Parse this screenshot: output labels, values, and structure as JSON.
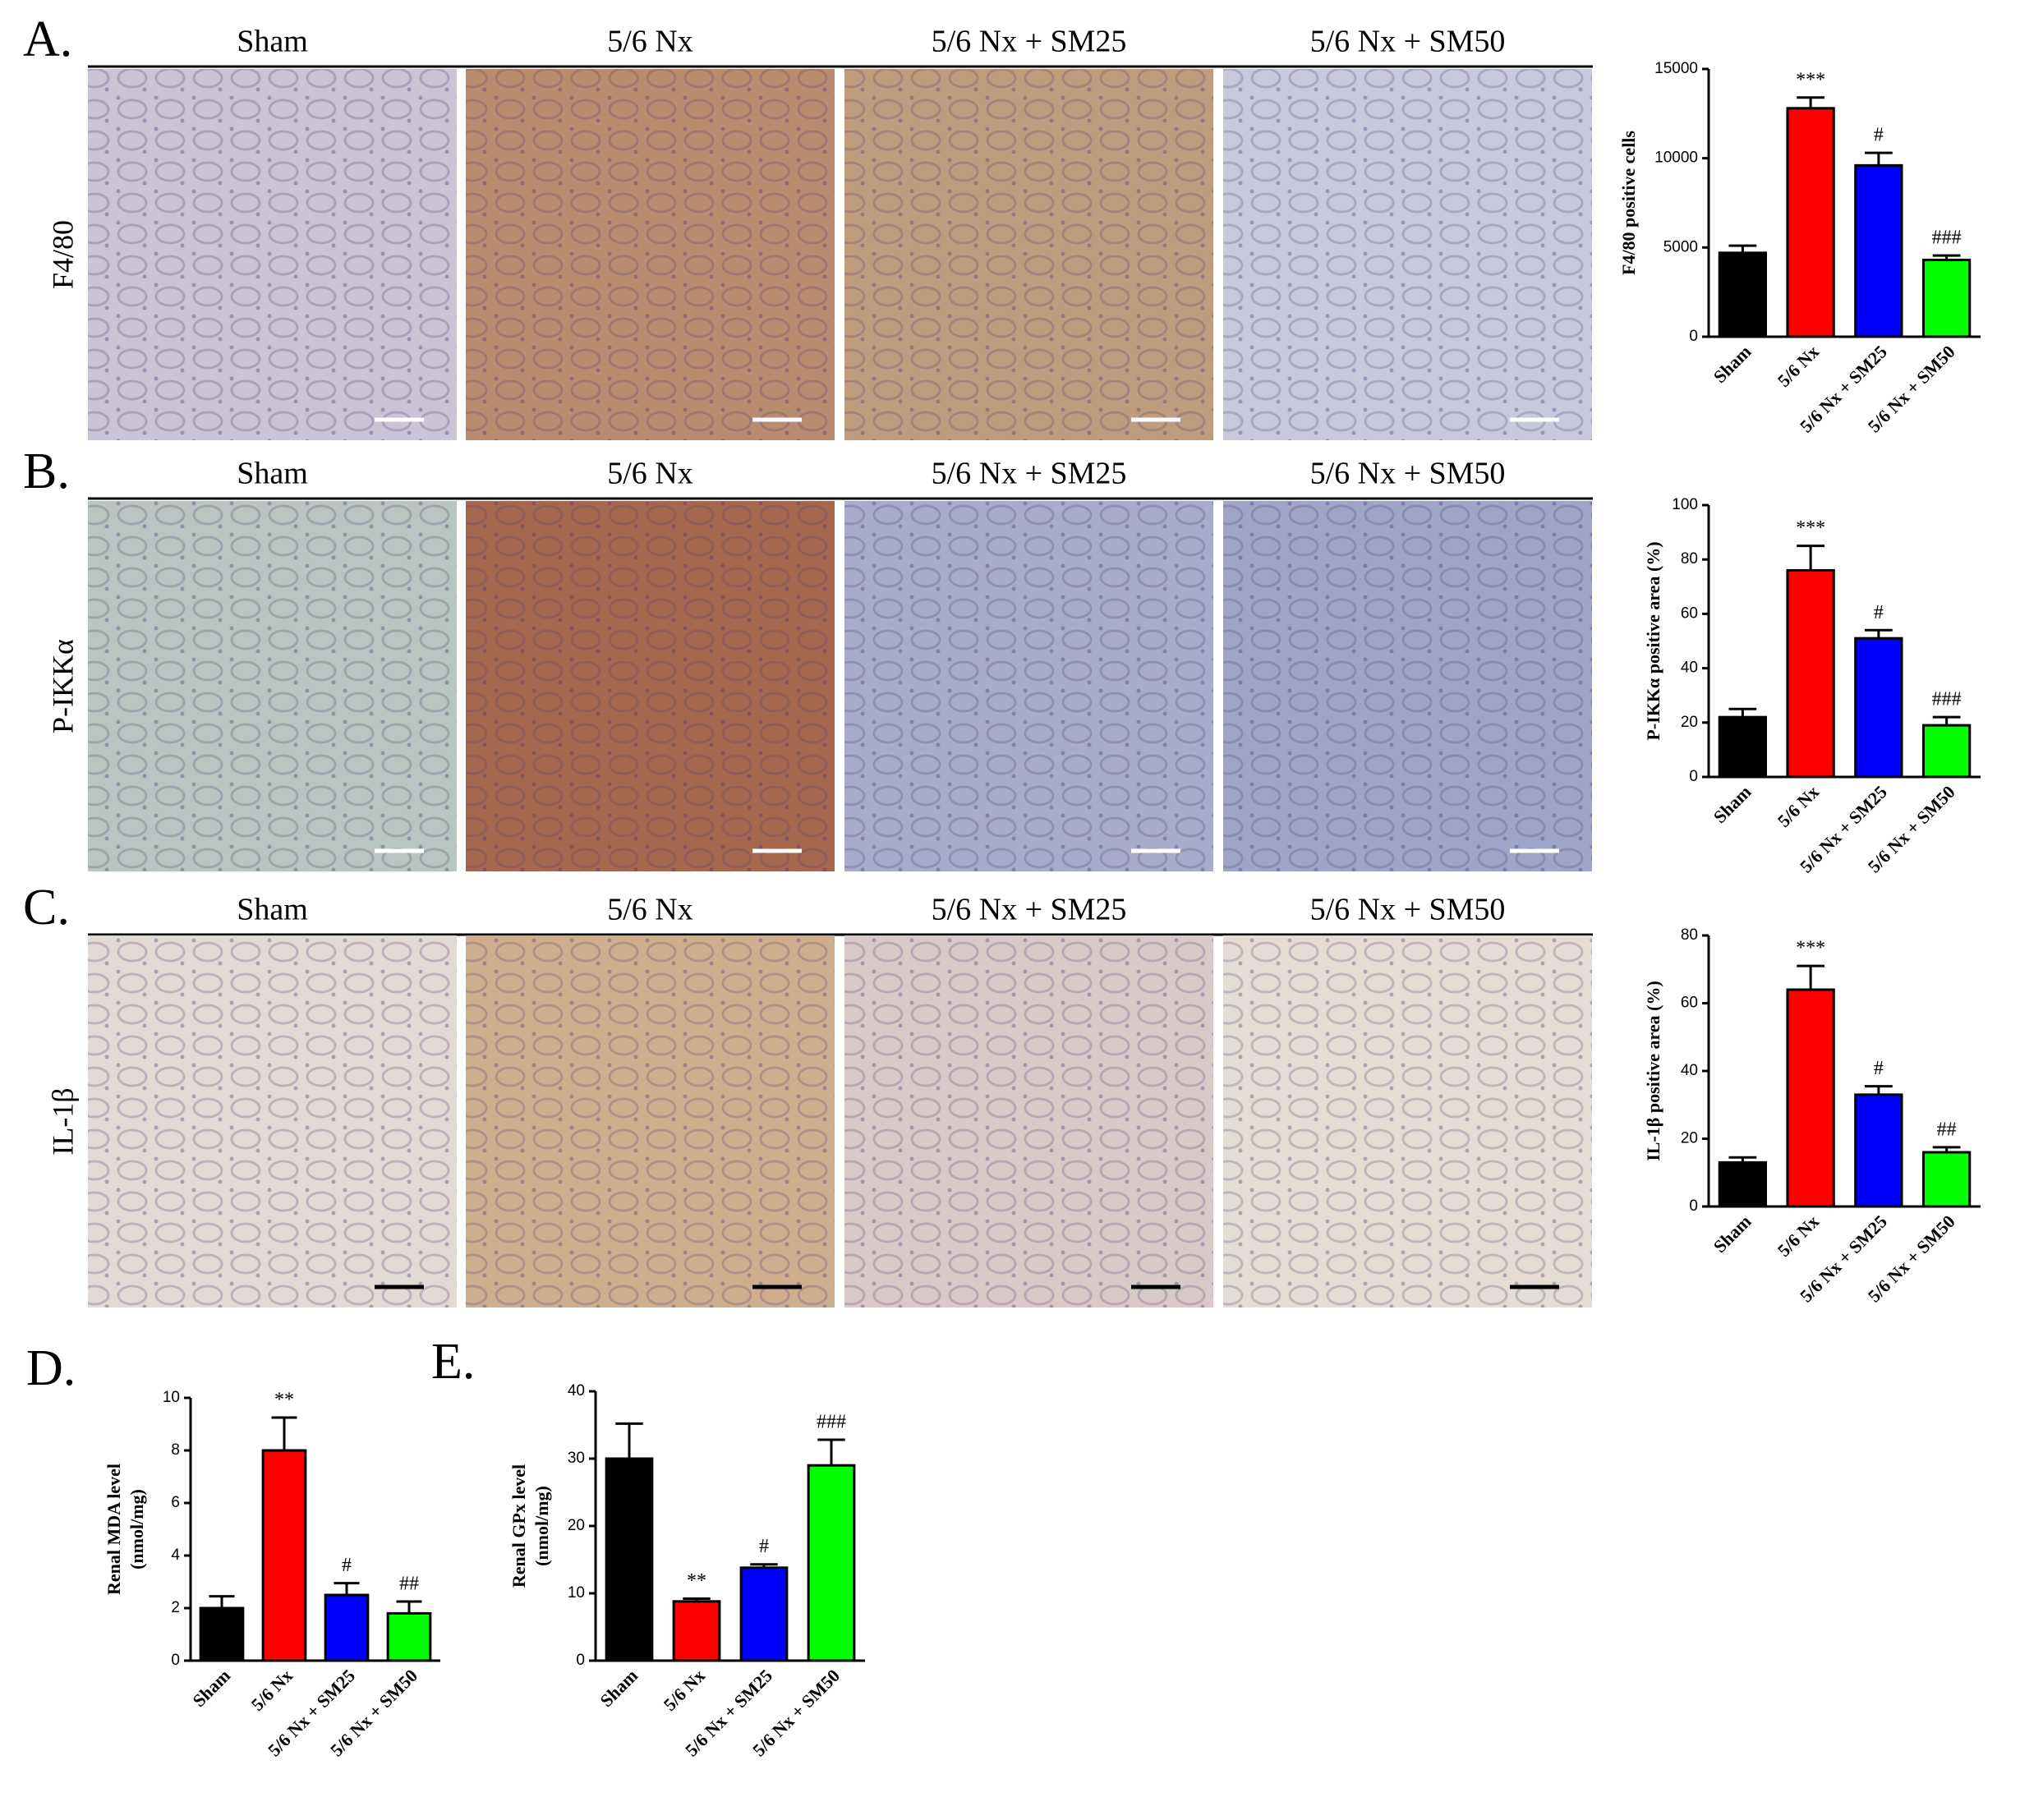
{
  "image_panels": [
    {
      "letter": "A.",
      "stain": "F4/80",
      "headers": [
        "Sham",
        "5/6 Nx",
        "5/6 Nx + SM25",
        "5/6 Nx + SM50"
      ]
    },
    {
      "letter": "B.",
      "stain": "P-IKKα",
      "headers": [
        "Sham",
        "5/6 Nx",
        "5/6 Nx + SM25",
        "5/6 Nx + SM50"
      ]
    },
    {
      "letter": "C.",
      "stain": "IL-1β",
      "headers": [
        "Sham",
        "5/6 Nx",
        "5/6 Nx + SM25",
        "5/6 Nx + SM50"
      ]
    }
  ],
  "chart_data": [
    {
      "type": "bar",
      "ylabel": "F4/80 positive cells",
      "categories": [
        "Sham",
        "5/6 Nx",
        "5/6 Nx + SM25",
        "5/6 Nx + SM50"
      ],
      "values": [
        4700,
        12800,
        9600,
        4300
      ],
      "errors": [
        400,
        600,
        700,
        250
      ],
      "annotations": [
        null,
        "***",
        "#",
        "###"
      ],
      "colors": [
        "#000000",
        "#ff0000",
        "#0000ff",
        "#00ff00"
      ],
      "ylim": [
        0,
        15000
      ],
      "yticks": [
        0,
        5000,
        10000,
        15000
      ]
    },
    {
      "type": "bar",
      "ylabel": "P-IKKα positive area (%)",
      "categories": [
        "Sham",
        "5/6 Nx",
        "5/6 Nx + SM25",
        "5/6 Nx + SM50"
      ],
      "values": [
        22,
        76,
        51,
        19
      ],
      "errors": [
        3,
        9,
        3,
        3
      ],
      "annotations": [
        null,
        "***",
        "#",
        "###"
      ],
      "colors": [
        "#000000",
        "#ff0000",
        "#0000ff",
        "#00ff00"
      ],
      "ylim": [
        0,
        100
      ],
      "yticks": [
        0,
        20,
        40,
        60,
        80,
        100
      ]
    },
    {
      "type": "bar",
      "ylabel": "IL-1β positive area (%)",
      "categories": [
        "Sham",
        "5/6 Nx",
        "5/6 Nx + SM25",
        "5/6 Nx + SM50"
      ],
      "values": [
        13,
        64,
        33,
        16
      ],
      "errors": [
        1.5,
        7,
        2.5,
        1.5
      ],
      "annotations": [
        null,
        "***",
        "#",
        "##"
      ],
      "colors": [
        "#000000",
        "#ff0000",
        "#0000ff",
        "#00ff00"
      ],
      "ylim": [
        0,
        80
      ],
      "yticks": [
        0,
        20,
        40,
        60,
        80
      ]
    },
    {
      "type": "bar",
      "panel": "D.",
      "ylabel": [
        "Renal MDA level",
        "(nmol/mg)"
      ],
      "categories": [
        "Sham",
        "5/6 Nx",
        "5/6 Nx + SM25",
        "5/6 Nx + SM50"
      ],
      "values": [
        2.0,
        8.0,
        2.5,
        1.8
      ],
      "errors": [
        0.45,
        1.25,
        0.45,
        0.45
      ],
      "annotations": [
        null,
        "**",
        "#",
        "##"
      ],
      "colors": [
        "#000000",
        "#ff0000",
        "#0000ff",
        "#00ff00"
      ],
      "ylim": [
        0,
        10
      ],
      "yticks": [
        0,
        2,
        4,
        6,
        8,
        10
      ]
    },
    {
      "type": "bar",
      "panel": "E.",
      "ylabel": [
        "Renal GPx level",
        "(nmol/mg)"
      ],
      "categories": [
        "Sham",
        "5/6 Nx",
        "5/6 Nx + SM25",
        "5/6 Nx + SM50"
      ],
      "values": [
        30,
        8.8,
        13.8,
        29
      ],
      "errors": [
        5.2,
        0.4,
        0.5,
        3.8
      ],
      "annotations": [
        null,
        "**",
        "#",
        "###"
      ],
      "colors": [
        "#000000",
        "#ff0000",
        "#0000ff",
        "#00ff00"
      ],
      "ylim": [
        0,
        40
      ],
      "yticks": [
        0,
        10,
        20,
        30,
        40
      ]
    }
  ]
}
